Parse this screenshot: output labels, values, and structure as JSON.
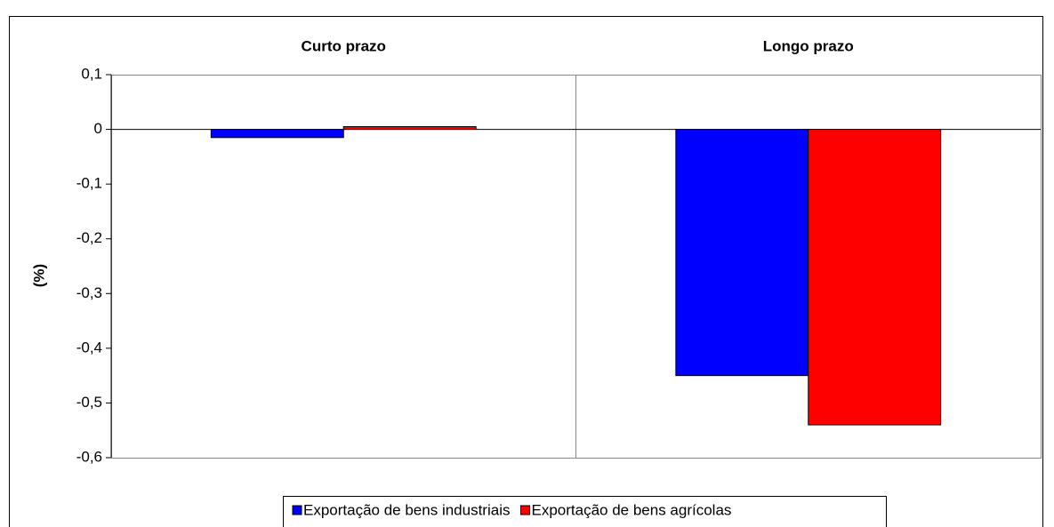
{
  "chart_data": {
    "type": "bar",
    "y_label": "(%)",
    "categories": [
      "Curto prazo",
      "Longo prazo"
    ],
    "series": [
      {
        "name": "Exportação de bens industriais",
        "color": "#0000ff",
        "values": [
          -0.015,
          -0.45
        ]
      },
      {
        "name": "Exportação de bens agrícolas",
        "color": "#ff0000",
        "values": [
          0.005,
          -0.54
        ]
      }
    ],
    "ylim": [
      -0.6,
      0.1
    ],
    "yticks": [
      {
        "value": 0.1,
        "label": "0,1"
      },
      0,
      {
        "value": -0.1,
        "label": "-0,1"
      },
      {
        "value": -0.2,
        "label": "-0,2"
      },
      {
        "value": -0.3,
        "label": "-0,3"
      },
      {
        "value": -0.4,
        "label": "-0,4"
      },
      {
        "value": -0.5,
        "label": "-0,5"
      },
      {
        "value": -0.6,
        "label": "-0,6"
      }
    ],
    "grid": false,
    "legend": "bottom"
  }
}
